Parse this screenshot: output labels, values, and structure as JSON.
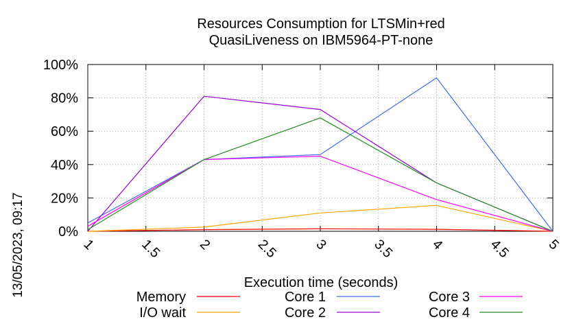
{
  "chart_data": {
    "type": "line",
    "title_lines": [
      "Resources Consumption for LTSMin+red",
      "QuasiLiveness on IBM5964-PT-none"
    ],
    "xlabel": "Execution time (seconds)",
    "ylabel": "",
    "xlim": [
      1,
      5
    ],
    "ylim": [
      0,
      100
    ],
    "x_ticks": [
      "1",
      "1.5",
      "2",
      "2.5",
      "3",
      "3.5",
      "4",
      "4.5",
      "5"
    ],
    "y_ticks": [
      "0%",
      "20%",
      "40%",
      "60%",
      "80%",
      "100%"
    ],
    "grid": true,
    "legend_position": "bottom",
    "x": [
      1,
      2,
      3,
      4,
      5
    ],
    "series": [
      {
        "name": "Memory",
        "color": "#ff0000",
        "values": [
          0,
          1,
          1.5,
          1.2,
          0
        ]
      },
      {
        "name": "I/O wait",
        "color": "#ffa500",
        "values": [
          0,
          2.5,
          11,
          15.5,
          0
        ]
      },
      {
        "name": "Core 1",
        "color": "#4169e1",
        "values": [
          5,
          43,
          46,
          92,
          0
        ]
      },
      {
        "name": "Core 2",
        "color": "#9400d3",
        "values": [
          0,
          81,
          73,
          29,
          0
        ]
      },
      {
        "name": "Core 3",
        "color": "#ff00ff",
        "values": [
          3,
          43,
          45,
          19,
          0
        ]
      },
      {
        "name": "Core 4",
        "color": "#228b22",
        "values": [
          1,
          43,
          68,
          29,
          0
        ]
      }
    ]
  },
  "side_text": "13/05/2023, 09:17"
}
